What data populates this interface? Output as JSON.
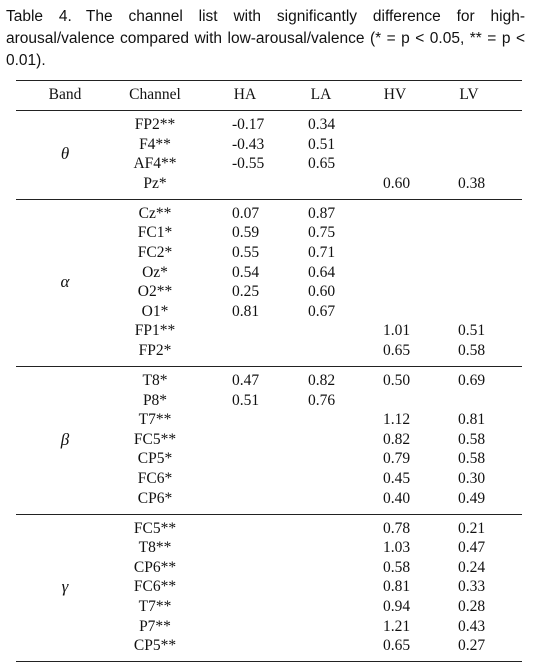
{
  "caption": {
    "label": "Table 4.",
    "text": "The channel list with significantly difference for high-arousal/valence compared with low-arousal/valence (* = p < 0.05, ** = p < 0.01)."
  },
  "table": {
    "header": [
      "Band",
      "Channel",
      "HA",
      "LA",
      "HV",
      "LV"
    ],
    "groups": [
      {
        "band": "θ",
        "rows": [
          [
            "FP2**",
            "-0.17",
            "0.34",
            null,
            null
          ],
          [
            "F4**",
            "-0.43",
            "0.51",
            null,
            null
          ],
          [
            "AF4**",
            "-0.55",
            "0.65",
            null,
            null
          ],
          [
            "Pz*",
            null,
            null,
            "0.60",
            "0.38"
          ]
        ]
      },
      {
        "band": "α",
        "rows": [
          [
            "Cz**",
            "0.07",
            "0.87",
            null,
            null
          ],
          [
            "FC1*",
            "0.59",
            "0.75",
            null,
            null
          ],
          [
            "FC2*",
            "0.55",
            "0.71",
            null,
            null
          ],
          [
            "Oz*",
            "0.54",
            "0.64",
            null,
            null
          ],
          [
            "O2**",
            "0.25",
            "0.60",
            null,
            null
          ],
          [
            "O1*",
            "0.81",
            "0.67",
            null,
            null
          ],
          [
            "FP1**",
            null,
            null,
            "1.01",
            "0.51"
          ],
          [
            "FP2*",
            null,
            null,
            "0.65",
            "0.58"
          ]
        ]
      },
      {
        "band": "β",
        "rows": [
          [
            "T8*",
            "0.47",
            "0.82",
            "0.50",
            "0.69"
          ],
          [
            "P8*",
            "0.51",
            "0.76",
            null,
            null
          ],
          [
            "T7**",
            null,
            null,
            "1.12",
            "0.81"
          ],
          [
            "FC5**",
            null,
            null,
            "0.82",
            "0.58"
          ],
          [
            "CP5*",
            null,
            null,
            "0.79",
            "0.58"
          ],
          [
            "FC6*",
            null,
            null,
            "0.45",
            "0.30"
          ],
          [
            "CP6*",
            null,
            null,
            "0.40",
            "0.49"
          ]
        ]
      },
      {
        "band": "γ",
        "rows": [
          [
            "FC5**",
            null,
            null,
            "0.78",
            "0.21"
          ],
          [
            "T8**",
            null,
            null,
            "1.03",
            "0.47"
          ],
          [
            "CP6**",
            null,
            null,
            "0.58",
            "0.24"
          ],
          [
            "FC6**",
            null,
            null,
            "0.81",
            "0.33"
          ],
          [
            "T7**",
            null,
            null,
            "0.94",
            "0.28"
          ],
          [
            "P7**",
            null,
            null,
            "1.21",
            "0.43"
          ],
          [
            "CP5**",
            null,
            null,
            "0.65",
            "0.27"
          ]
        ]
      }
    ]
  }
}
